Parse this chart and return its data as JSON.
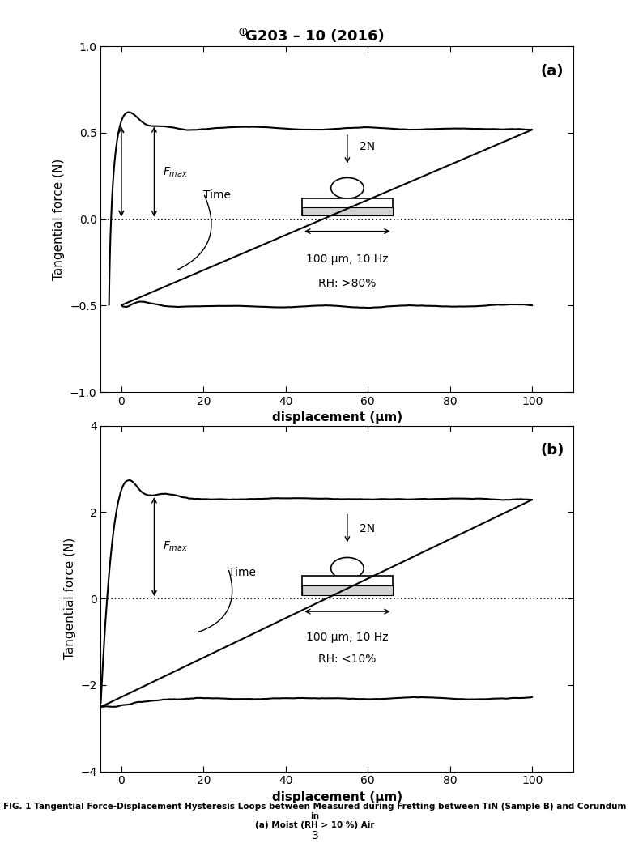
{
  "title": "G203 – 10 (2016)",
  "fig_caption": "FIG. 1 Tangential Force-Displacement Hysteresis Loops between Measured during Fretting between TiN (Sample B) and Corundum in\n(a) Moist (RH > 10 %) Air",
  "page_number": "3",
  "subplot_a": {
    "label": "(a)",
    "xlabel": "displacement (μm)",
    "ylabel": "Tangential force (N)",
    "xlim": [
      -5,
      110
    ],
    "ylim": [
      -1.0,
      1.0
    ],
    "xticks": [
      0,
      20,
      40,
      60,
      80,
      100
    ],
    "yticks": [
      -1.0,
      -0.5,
      0.0,
      0.5,
      1.0
    ],
    "annotation_text1": "100 μm, 10 Hz",
    "annotation_text2": "RH: >80%",
    "fmax_label": "Fₘₐˣ",
    "time_label": "Time",
    "load_label": "2N"
  },
  "subplot_b": {
    "label": "(b)",
    "xlabel": "displacement (μm)",
    "ylabel": "Tangential force (N)",
    "xlim": [
      -5,
      110
    ],
    "ylim": [
      -4.0,
      4.0
    ],
    "xticks": [
      0,
      20,
      40,
      60,
      80,
      100
    ],
    "yticks": [
      -4.0,
      -2.0,
      0.0,
      2.0,
      4.0
    ],
    "annotation_text1": "100 μm, 10 Hz",
    "annotation_text2": "RH: <10%",
    "fmax_label": "Fₘₐˣ",
    "time_label": "Time",
    "load_label": "2N"
  },
  "line_color": "#000000",
  "bg_color": "#ffffff",
  "dotted_line_color": "#000000"
}
